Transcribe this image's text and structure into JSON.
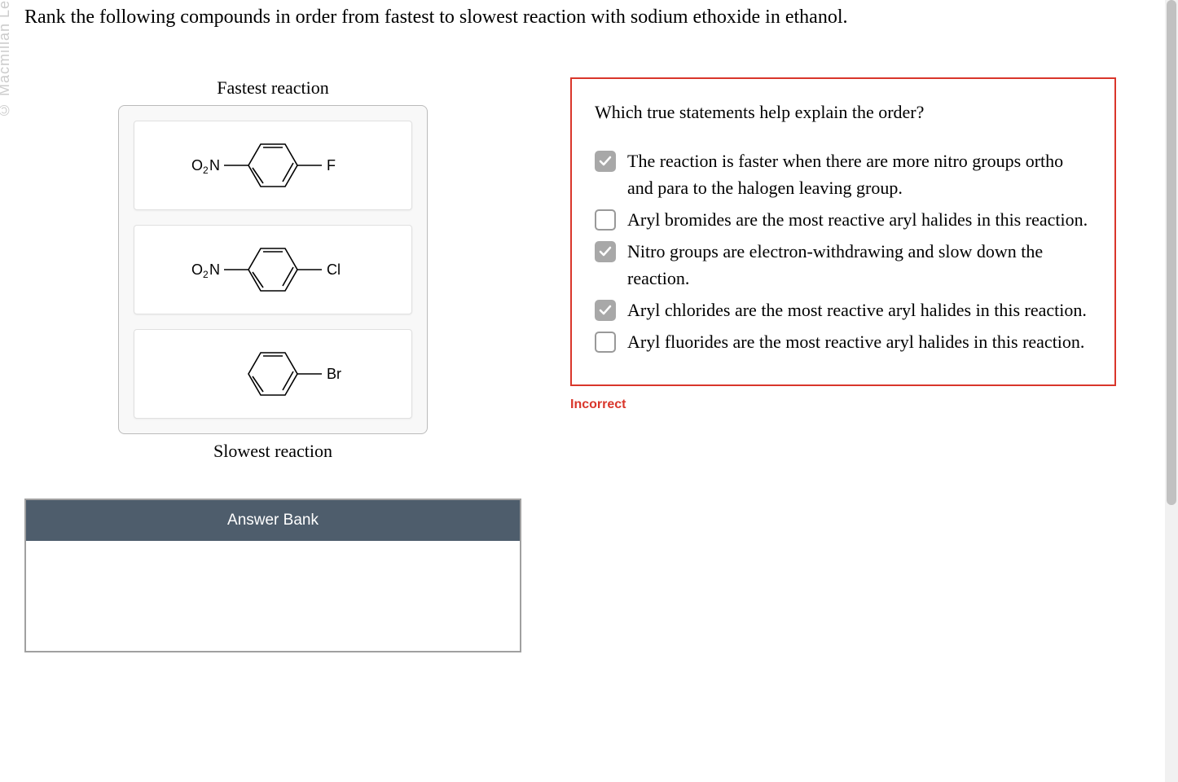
{
  "watermark": "© Macmillan Le",
  "question": "Rank the following compounds in order from fastest to slowest reaction with sodium ethoxide in ethanol.",
  "ranking": {
    "top_label": "Fastest reaction",
    "bottom_label": "Slowest reaction",
    "compounds": [
      {
        "left_sub": "O₂N",
        "right_sub": "F",
        "has_left": true
      },
      {
        "left_sub": "O₂N",
        "right_sub": "Cl",
        "has_left": true
      },
      {
        "left_sub": "",
        "right_sub": "Br",
        "has_left": false
      }
    ]
  },
  "answer_bank": {
    "header": "Answer Bank"
  },
  "explanation": {
    "title": "Which true statements help explain the order?",
    "options": [
      {
        "checked": true,
        "text": "The reaction is faster when there are more nitro groups ortho and para to the halogen leaving group."
      },
      {
        "checked": false,
        "text": "Aryl bromides are the most reactive aryl halides in this reaction."
      },
      {
        "checked": true,
        "text": "Nitro groups are electron-withdrawing and slow down the reaction."
      },
      {
        "checked": true,
        "text": "Aryl chlorides are the most reactive aryl halides in this reaction."
      },
      {
        "checked": false,
        "text": "Aryl fluorides are the most reactive aryl halides in this reaction."
      }
    ],
    "feedback": "Incorrect"
  },
  "colors": {
    "error": "#d9362b",
    "bank_header": "#4e5d6c",
    "checkbox_checked": "#a8a8a8"
  }
}
